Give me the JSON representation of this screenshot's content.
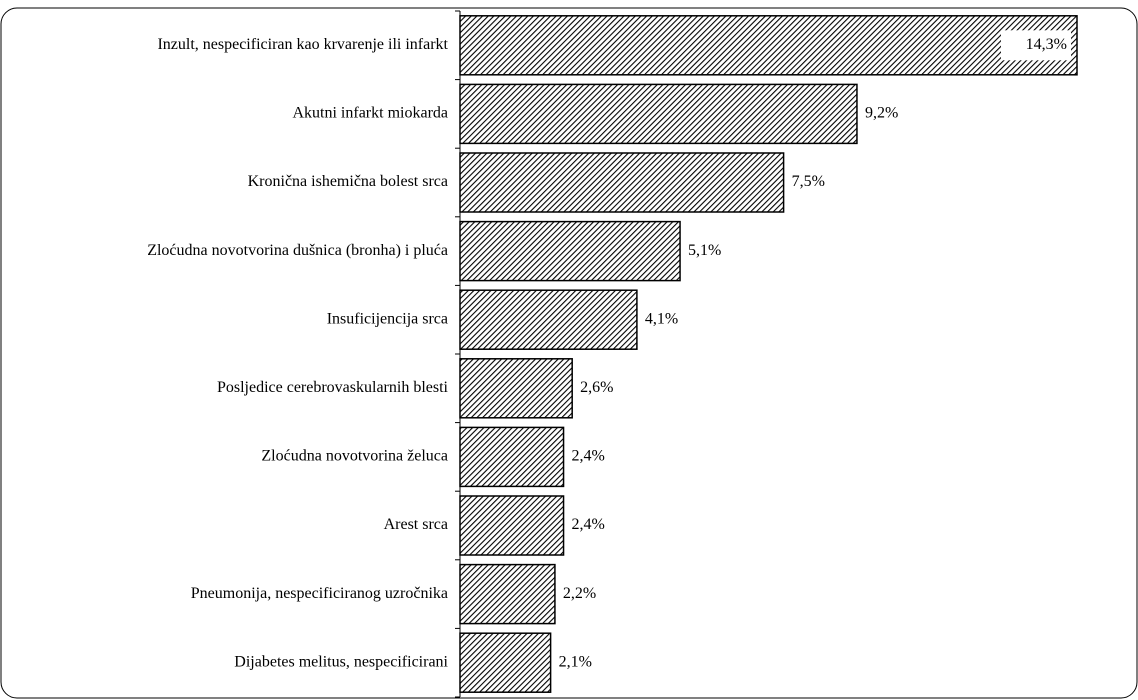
{
  "chart_data": {
    "type": "bar",
    "orientation": "horizontal",
    "categories": [
      "Inzult, nespecificiran kao krvarenje ili infarkt",
      "Akutni infarkt miokarda",
      "Kronična ishemična bolest srca",
      "Zloćudna novotvorina dušnica (bronha) i pluća",
      "Insuficijencija srca",
      "Posljedice cerebrovaskularnih blesti",
      "Zloćudna novotvorina želuca",
      "Arest srca",
      "Pneumonija, nespecificiranog uzročnika",
      "Dijabetes melitus, nespecificirani"
    ],
    "values": [
      14.3,
      9.2,
      7.5,
      5.1,
      4.1,
      2.6,
      2.4,
      2.4,
      2.2,
      2.1
    ],
    "value_labels": [
      "14,3%",
      "9,2%",
      "7,5%",
      "5,1%",
      "4,1%",
      "2,6%",
      "2,4%",
      "2,4%",
      "2,2%",
      "2,1%"
    ],
    "color": "#000000"
  }
}
